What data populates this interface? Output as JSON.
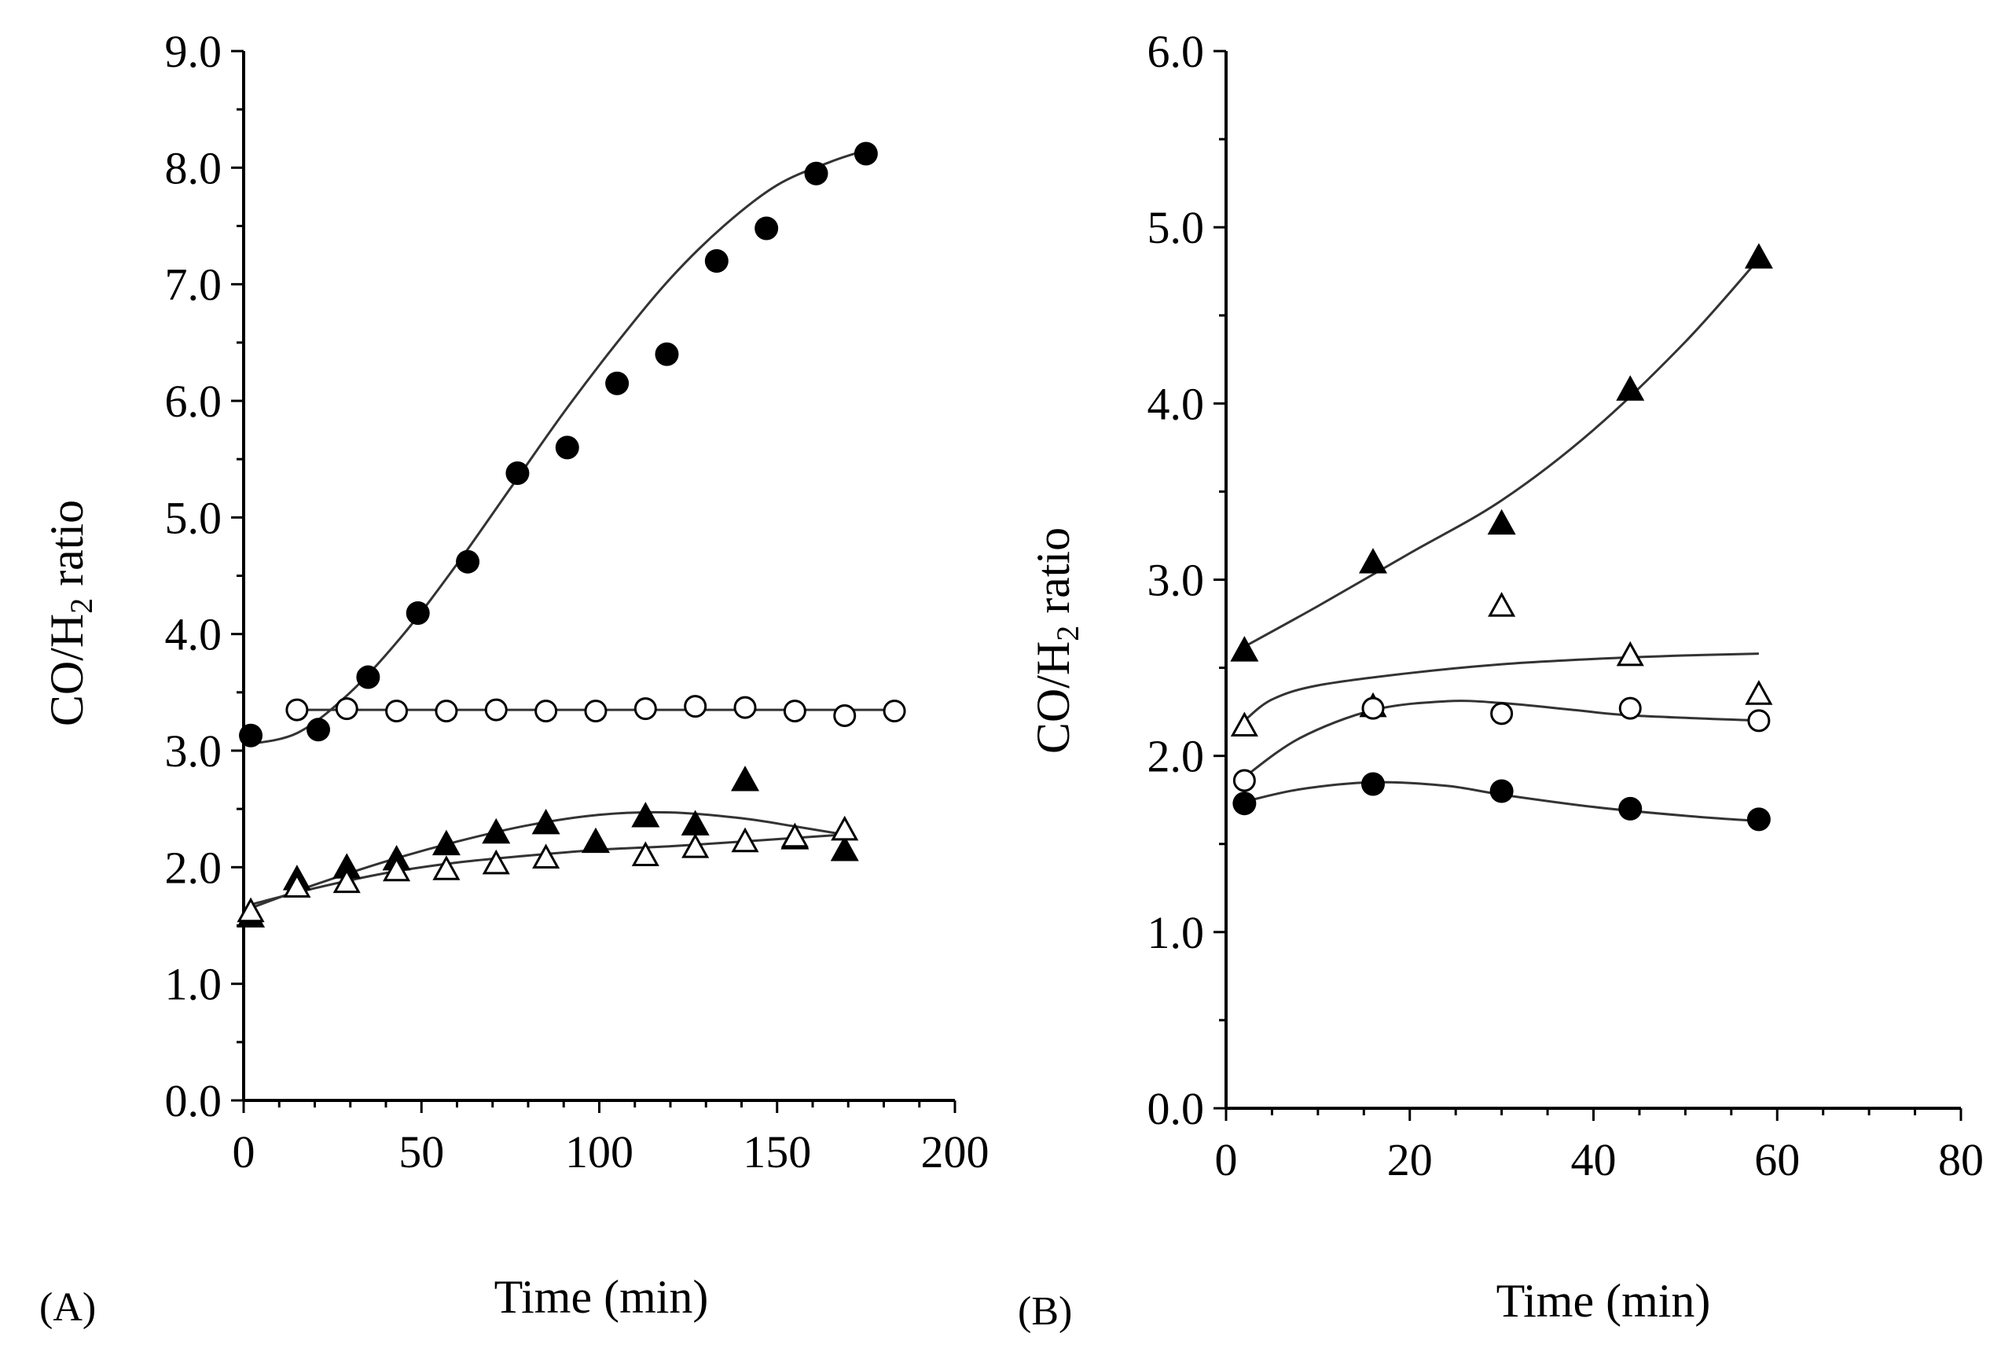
{
  "chart_data": [
    {
      "panel": "(A)",
      "type": "scatter",
      "xlabel": "Time (min)",
      "ylabel_main": "CO/H",
      "ylabel_sub": "2",
      "ylabel_tail": " ratio",
      "xlim": [
        0,
        200
      ],
      "ylim": [
        0,
        9
      ],
      "xticks": [
        0,
        50,
        100,
        150,
        200
      ],
      "yticks": [
        0,
        1,
        2,
        3,
        4,
        5,
        6,
        7,
        8,
        9
      ],
      "xtick_labels": [
        "0",
        "50",
        "100",
        "150",
        "200"
      ],
      "ytick_labels": [
        "0.0",
        "1.0",
        "2.0",
        "3.0",
        "4.0",
        "5.0",
        "6.0",
        "7.0",
        "8.0",
        "9.0"
      ],
      "series": [
        {
          "name": "filled-circle",
          "marker": "circle-filled",
          "x": [
            2,
            21,
            35,
            49,
            63,
            77,
            91,
            105,
            119,
            133,
            147,
            161,
            175
          ],
          "y": [
            3.13,
            3.18,
            3.63,
            4.18,
            4.62,
            5.38,
            5.6,
            6.15,
            6.4,
            7.2,
            7.48,
            7.95,
            8.12
          ],
          "fit_x": [
            0,
            15,
            30,
            45,
            60,
            75,
            90,
            105,
            120,
            135,
            150,
            165,
            175
          ],
          "fit_y": [
            3.05,
            3.15,
            3.5,
            4.0,
            4.6,
            5.25,
            5.9,
            6.5,
            7.05,
            7.5,
            7.85,
            8.05,
            8.15
          ]
        },
        {
          "name": "open-circle",
          "marker": "circle-open",
          "x": [
            15,
            29,
            43,
            57,
            71,
            85,
            99,
            113,
            127,
            141,
            155,
            169,
            183
          ],
          "y": [
            3.35,
            3.36,
            3.34,
            3.34,
            3.35,
            3.34,
            3.34,
            3.36,
            3.38,
            3.37,
            3.34,
            3.3,
            3.34
          ],
          "fit_x": [
            15,
            183
          ],
          "fit_y": [
            3.35,
            3.35
          ]
        },
        {
          "name": "filled-triangle",
          "marker": "triangle-filled",
          "x": [
            2,
            15,
            29,
            43,
            57,
            71,
            85,
            99,
            113,
            127,
            141,
            155,
            169
          ],
          "y": [
            1.58,
            1.9,
            2.0,
            2.07,
            2.2,
            2.3,
            2.38,
            2.22,
            2.44,
            2.37,
            2.75,
            2.25,
            2.15
          ],
          "fit_x": [
            2,
            20,
            40,
            60,
            80,
            100,
            120,
            140,
            155,
            169
          ],
          "fit_y": [
            1.65,
            1.85,
            2.05,
            2.22,
            2.36,
            2.45,
            2.47,
            2.42,
            2.35,
            2.28
          ]
        },
        {
          "name": "open-triangle",
          "marker": "triangle-open",
          "x": [
            2,
            15,
            29,
            43,
            57,
            71,
            85,
            113,
            127,
            141,
            155,
            169
          ],
          "y": [
            1.62,
            1.83,
            1.87,
            1.97,
            1.98,
            2.03,
            2.08,
            2.1,
            2.17,
            2.22,
            2.26,
            2.32
          ],
          "fit_x": [
            2,
            20,
            40,
            60,
            80,
            100,
            120,
            140,
            169
          ],
          "fit_y": [
            1.68,
            1.82,
            1.95,
            2.04,
            2.1,
            2.15,
            2.18,
            2.22,
            2.28
          ]
        }
      ]
    },
    {
      "panel": "(B)",
      "type": "scatter",
      "xlabel": "Time (min)",
      "ylabel_main": "CO/H",
      "ylabel_sub": "2",
      "ylabel_tail": " ratio",
      "xlim": [
        0,
        80
      ],
      "ylim": [
        0,
        6
      ],
      "xticks": [
        0,
        20,
        40,
        60,
        80
      ],
      "yticks": [
        0,
        1,
        2,
        3,
        4,
        5,
        6
      ],
      "xtick_labels": [
        "0",
        "20",
        "40",
        "60",
        "80"
      ],
      "ytick_labels": [
        "0.0",
        "1.0",
        "2.0",
        "3.0",
        "4.0",
        "5.0",
        "6.0"
      ],
      "series": [
        {
          "name": "filled-triangle",
          "marker": "triangle-filled",
          "x": [
            2,
            16,
            30,
            44,
            58
          ],
          "y": [
            2.6,
            3.1,
            3.32,
            4.08,
            4.83
          ],
          "fit_x": [
            2,
            10,
            20,
            30,
            40,
            50,
            58
          ],
          "fit_y": [
            2.62,
            2.85,
            3.15,
            3.45,
            3.85,
            4.35,
            4.82
          ]
        },
        {
          "name": "open-triangle",
          "marker": "triangle-open",
          "x": [
            2,
            16,
            30,
            44,
            58
          ],
          "y": [
            2.17,
            2.28,
            2.85,
            2.57,
            2.35
          ],
          "fit_x": [
            2,
            5,
            10,
            20,
            30,
            40,
            50,
            58
          ],
          "fit_y": [
            2.2,
            2.32,
            2.4,
            2.47,
            2.52,
            2.55,
            2.57,
            2.58
          ]
        },
        {
          "name": "open-circle",
          "marker": "circle-open",
          "x": [
            2,
            16,
            30,
            44,
            58
          ],
          "y": [
            1.86,
            2.27,
            2.24,
            2.27,
            2.2
          ],
          "fit_x": [
            2,
            8,
            16,
            24,
            30,
            38,
            44,
            58
          ],
          "fit_y": [
            1.88,
            2.1,
            2.26,
            2.31,
            2.3,
            2.26,
            2.23,
            2.2
          ]
        },
        {
          "name": "filled-circle",
          "marker": "circle-filled",
          "x": [
            2,
            16,
            30,
            44,
            58
          ],
          "y": [
            1.73,
            1.84,
            1.8,
            1.7,
            1.64
          ],
          "fit_x": [
            2,
            8,
            16,
            24,
            30,
            40,
            50,
            58
          ],
          "fit_y": [
            1.74,
            1.81,
            1.85,
            1.83,
            1.78,
            1.71,
            1.66,
            1.63
          ]
        }
      ]
    }
  ]
}
